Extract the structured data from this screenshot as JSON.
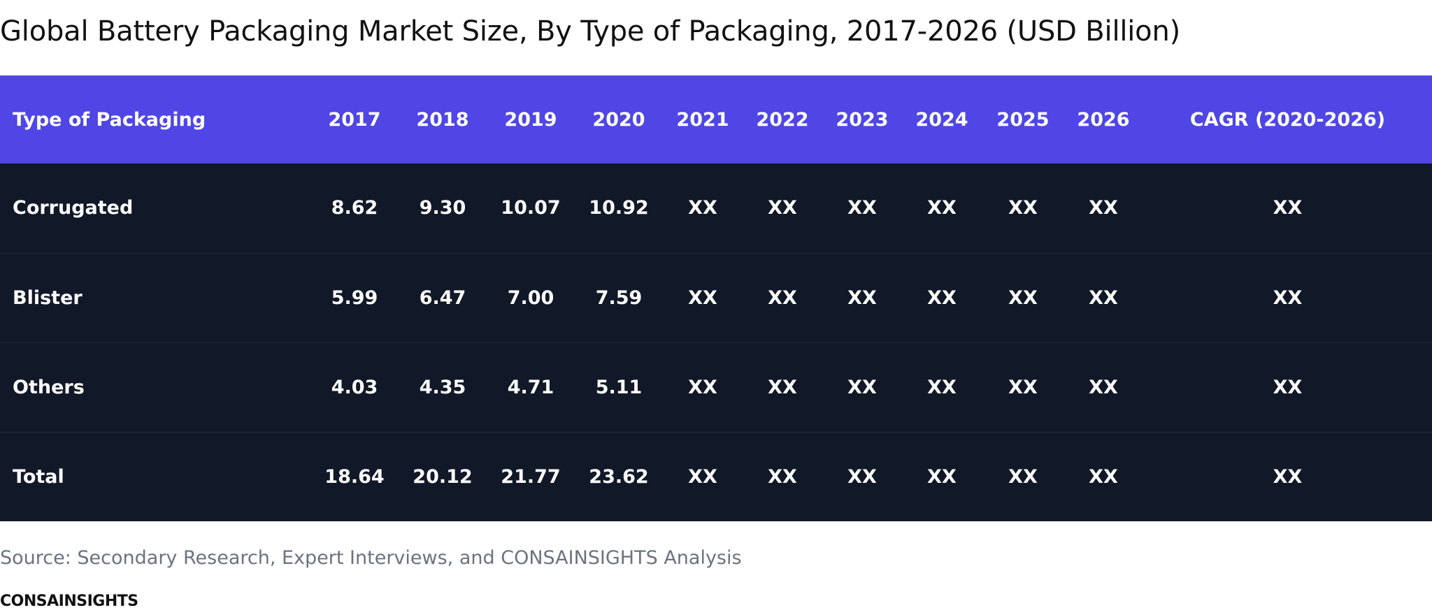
{
  "chart_data": {
    "type": "table",
    "title": "Global Battery Packaging Market Size, By Type of Packaging, 2017-2026 (USD Billion)",
    "columns": [
      "Type of Packaging",
      "2017",
      "2018",
      "2019",
      "2020",
      "2021",
      "2022",
      "2023",
      "2024",
      "2025",
      "2026",
      "CAGR (2020-2026)"
    ],
    "rows": [
      [
        "Corrugated",
        "8.62",
        "9.30",
        "10.07",
        "10.92",
        "XX",
        "XX",
        "XX",
        "XX",
        "XX",
        "XX",
        "XX"
      ],
      [
        "Blister",
        "5.99",
        "6.47",
        "7.00",
        "7.59",
        "XX",
        "XX",
        "XX",
        "XX",
        "XX",
        "XX",
        "XX"
      ],
      [
        "Others",
        "4.03",
        "4.35",
        "4.71",
        "5.11",
        "XX",
        "XX",
        "XX",
        "XX",
        "XX",
        "XX",
        "XX"
      ],
      [
        "Total",
        "18.64",
        "20.12",
        "21.77",
        "23.62",
        "XX",
        "XX",
        "XX",
        "XX",
        "XX",
        "XX",
        "XX"
      ]
    ]
  },
  "source": "Source: Secondary Research, Expert Interviews, and CONSAINSIGHTS Analysis",
  "brand": "CONSAINSIGHTS",
  "colors": {
    "header_bg": "#4f46e5",
    "body_bg": "#111827",
    "row_divider": "#1f2b3c",
    "text_light": "#ffffff",
    "source_text": "#6b7280"
  }
}
